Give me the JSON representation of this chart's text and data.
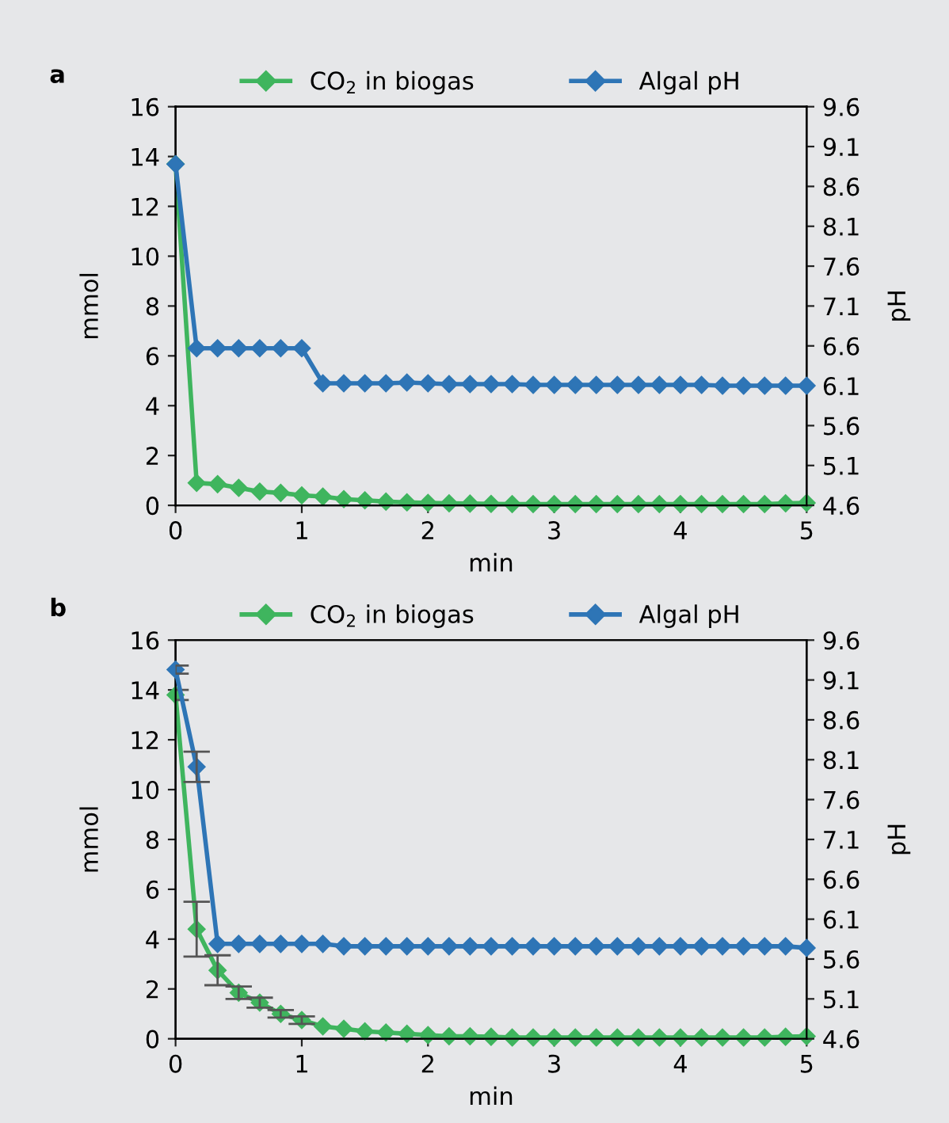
{
  "chart_data": [
    {
      "type": "line",
      "title": "a",
      "xlabel": "min",
      "ylabel": "mmol",
      "y2label": "pH",
      "legend": "top",
      "marker": "diamond",
      "line_style": "solid",
      "grid": false,
      "xlim": [
        0,
        5
      ],
      "xticks": [
        0,
        1,
        2,
        3,
        4,
        5
      ],
      "ylim": [
        0,
        16
      ],
      "yticks": [
        0,
        2,
        4,
        6,
        8,
        10,
        12,
        14,
        16
      ],
      "y2lim": [
        4.6,
        9.6
      ],
      "y2ticks": [
        4.6,
        5.1,
        5.6,
        6.1,
        6.6,
        7.1,
        7.6,
        8.1,
        8.6,
        9.1,
        9.6
      ],
      "x": [
        0,
        0.167,
        0.333,
        0.5,
        0.667,
        0.833,
        1,
        1.167,
        1.333,
        1.5,
        1.667,
        1.833,
        2,
        2.167,
        2.333,
        2.5,
        2.667,
        2.833,
        3,
        3.167,
        3.333,
        3.5,
        3.667,
        3.833,
        4,
        4.167,
        4.333,
        4.5,
        4.667,
        4.833,
        5
      ],
      "series": [
        {
          "name": "CO$_{2}$ in biogas",
          "color": "#3fb55e",
          "values": [
            13.7,
            0.9,
            0.85,
            0.7,
            0.55,
            0.5,
            0.4,
            0.35,
            0.25,
            0.2,
            0.15,
            0.12,
            0.1,
            0.08,
            0.07,
            0.06,
            0.05,
            0.05,
            0.05,
            0.05,
            0.05,
            0.05,
            0.05,
            0.05,
            0.05,
            0.05,
            0.05,
            0.05,
            0.05,
            0.08,
            0.1
          ]
        },
        {
          "name": "Algal pH",
          "color": "#2e75b6",
          "axis": "y2",
          "values": [
            8.88,
            6.57,
            6.57,
            6.57,
            6.57,
            6.57,
            6.57,
            6.13,
            6.13,
            6.13,
            6.13,
            6.14,
            6.13,
            6.12,
            6.12,
            6.12,
            6.12,
            6.11,
            6.11,
            6.11,
            6.11,
            6.11,
            6.11,
            6.11,
            6.11,
            6.11,
            6.1,
            6.1,
            6.1,
            6.1,
            6.1
          ]
        }
      ]
    },
    {
      "type": "line",
      "title": "b",
      "xlabel": "min",
      "ylabel": "mmol",
      "y2label": "pH",
      "legend": "top",
      "marker": "diamond",
      "line_style": "solid",
      "grid": false,
      "xlim": [
        0,
        5
      ],
      "xticks": [
        0,
        1,
        2,
        3,
        4,
        5
      ],
      "ylim": [
        0,
        16
      ],
      "yticks": [
        0,
        2,
        4,
        6,
        8,
        10,
        12,
        14,
        16
      ],
      "y2lim": [
        4.6,
        9.6
      ],
      "y2ticks": [
        4.6,
        5.1,
        5.6,
        6.1,
        6.6,
        7.1,
        7.6,
        8.1,
        8.6,
        9.1,
        9.6
      ],
      "x": [
        0,
        0.167,
        0.333,
        0.5,
        0.667,
        0.833,
        1,
        1.167,
        1.333,
        1.5,
        1.667,
        1.833,
        2,
        2.167,
        2.333,
        2.5,
        2.667,
        2.833,
        3,
        3.167,
        3.333,
        3.5,
        3.667,
        3.833,
        4,
        4.167,
        4.333,
        4.5,
        4.667,
        4.833,
        5
      ],
      "series": [
        {
          "name": "CO$_{2}$ in biogas",
          "color": "#3fb55e",
          "values": [
            13.8,
            4.4,
            2.75,
            1.85,
            1.45,
            1.0,
            0.75,
            0.5,
            0.4,
            0.3,
            0.25,
            0.2,
            0.15,
            0.1,
            0.1,
            0.08,
            0.05,
            0.05,
            0.05,
            0.05,
            0.05,
            0.05,
            0.05,
            0.05,
            0.05,
            0.05,
            0.05,
            0.05,
            0.05,
            0.08,
            0.1
          ],
          "errors": [
            0.2,
            1.1,
            0.6,
            0.25,
            0.2,
            0.15,
            0.15,
            null,
            null,
            null,
            null,
            null,
            null,
            null,
            null,
            null,
            null,
            null,
            null,
            null,
            null,
            null,
            null,
            null,
            null,
            null,
            null,
            null,
            null,
            null,
            null
          ]
        },
        {
          "name": "Algal pH",
          "color": "#2e75b6",
          "axis": "y2",
          "values": [
            9.23,
            8.01,
            5.79,
            5.79,
            5.79,
            5.79,
            5.79,
            5.79,
            5.76,
            5.76,
            5.76,
            5.76,
            5.76,
            5.76,
            5.76,
            5.76,
            5.76,
            5.76,
            5.76,
            5.76,
            5.76,
            5.76,
            5.76,
            5.76,
            5.76,
            5.76,
            5.76,
            5.76,
            5.76,
            5.76,
            5.74
          ],
          "errors": [
            0.05,
            0.19,
            null,
            null,
            null,
            null,
            null,
            null,
            null,
            null,
            null,
            null,
            null,
            null,
            null,
            null,
            null,
            null,
            null,
            null,
            null,
            null,
            null,
            null,
            null,
            null,
            null,
            null,
            null,
            null,
            null
          ]
        }
      ]
    }
  ]
}
